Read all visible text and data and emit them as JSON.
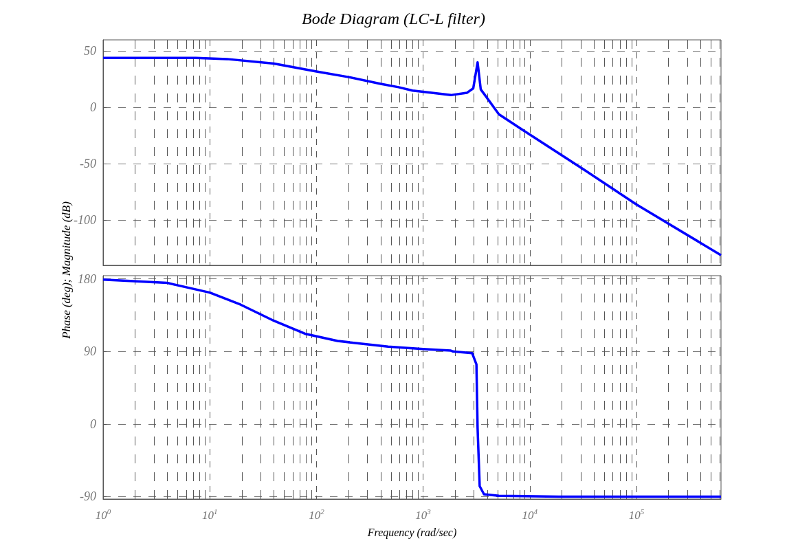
{
  "chart_data": [
    {
      "type": "line",
      "title": "Bode Diagram (LC-L filter)",
      "ylabel": "Phase (deg); Magnitude (dB)",
      "tick_labels": "y",
      "log": "x",
      "grid": true,
      "marker": "none",
      "line_style": "solid",
      "xlim": [
        1,
        620000
      ],
      "xticks": [
        {
          "value": 1,
          "label": null
        },
        {
          "value": 10,
          "label": null
        },
        {
          "value": 100,
          "label": null
        },
        {
          "value": 1000,
          "label": null
        },
        {
          "value": 10000,
          "label": null
        },
        {
          "value": 100000,
          "label": null
        }
      ],
      "ylim": [
        -140,
        60
      ],
      "yticks": [
        -100,
        -50,
        0,
        50
      ],
      "series": [
        {
          "color": "#0000ff",
          "x": [
            1,
            7.4,
            14.5,
            40,
            100,
            200,
            400,
            590,
            794,
            1000,
            1820,
            2570,
            2950,
            3240,
            3470,
            3800,
            5130,
            10000,
            30900,
            100000,
            620000
          ],
          "values": [
            44,
            44,
            43,
            39,
            32,
            27,
            21,
            18,
            15,
            14,
            11,
            13,
            17,
            40,
            16,
            11,
            -6,
            -24,
            -54,
            -86,
            -131
          ]
        }
      ]
    },
    {
      "type": "line",
      "xlabel": "Frequency (rad/sec)",
      "log": "x",
      "grid": true,
      "marker": "none",
      "line_style": "solid",
      "xlim": [
        1,
        620000
      ],
      "xticks": [
        {
          "value": 1,
          "label": "10$^{0}$"
        },
        {
          "value": 10,
          "label": "10$^{1}$"
        },
        {
          "value": 100,
          "label": "10$^{2}$"
        },
        {
          "value": 1000,
          "label": "10$^{3}$"
        },
        {
          "value": 10000,
          "label": "10$^{4}$"
        },
        {
          "value": 100000,
          "label": "10$^{5}$"
        }
      ],
      "ylim": [
        -93,
        184
      ],
      "yticks": [
        -90,
        0,
        90,
        180
      ],
      "series": [
        {
          "color": "#0000ff",
          "x": [
            1,
            4,
            10,
            19.5,
            40,
            78,
            158,
            470,
            1000,
            1820,
            1910,
            2880,
            3160,
            3240,
            3390,
            3720,
            5130,
            18600,
            620000
          ],
          "values": [
            179,
            175,
            163,
            148,
            128,
            112,
            103,
            96,
            93,
            91,
            90,
            88,
            74,
            -5,
            -77,
            -87,
            -89,
            -90,
            -90
          ]
        }
      ]
    }
  ]
}
